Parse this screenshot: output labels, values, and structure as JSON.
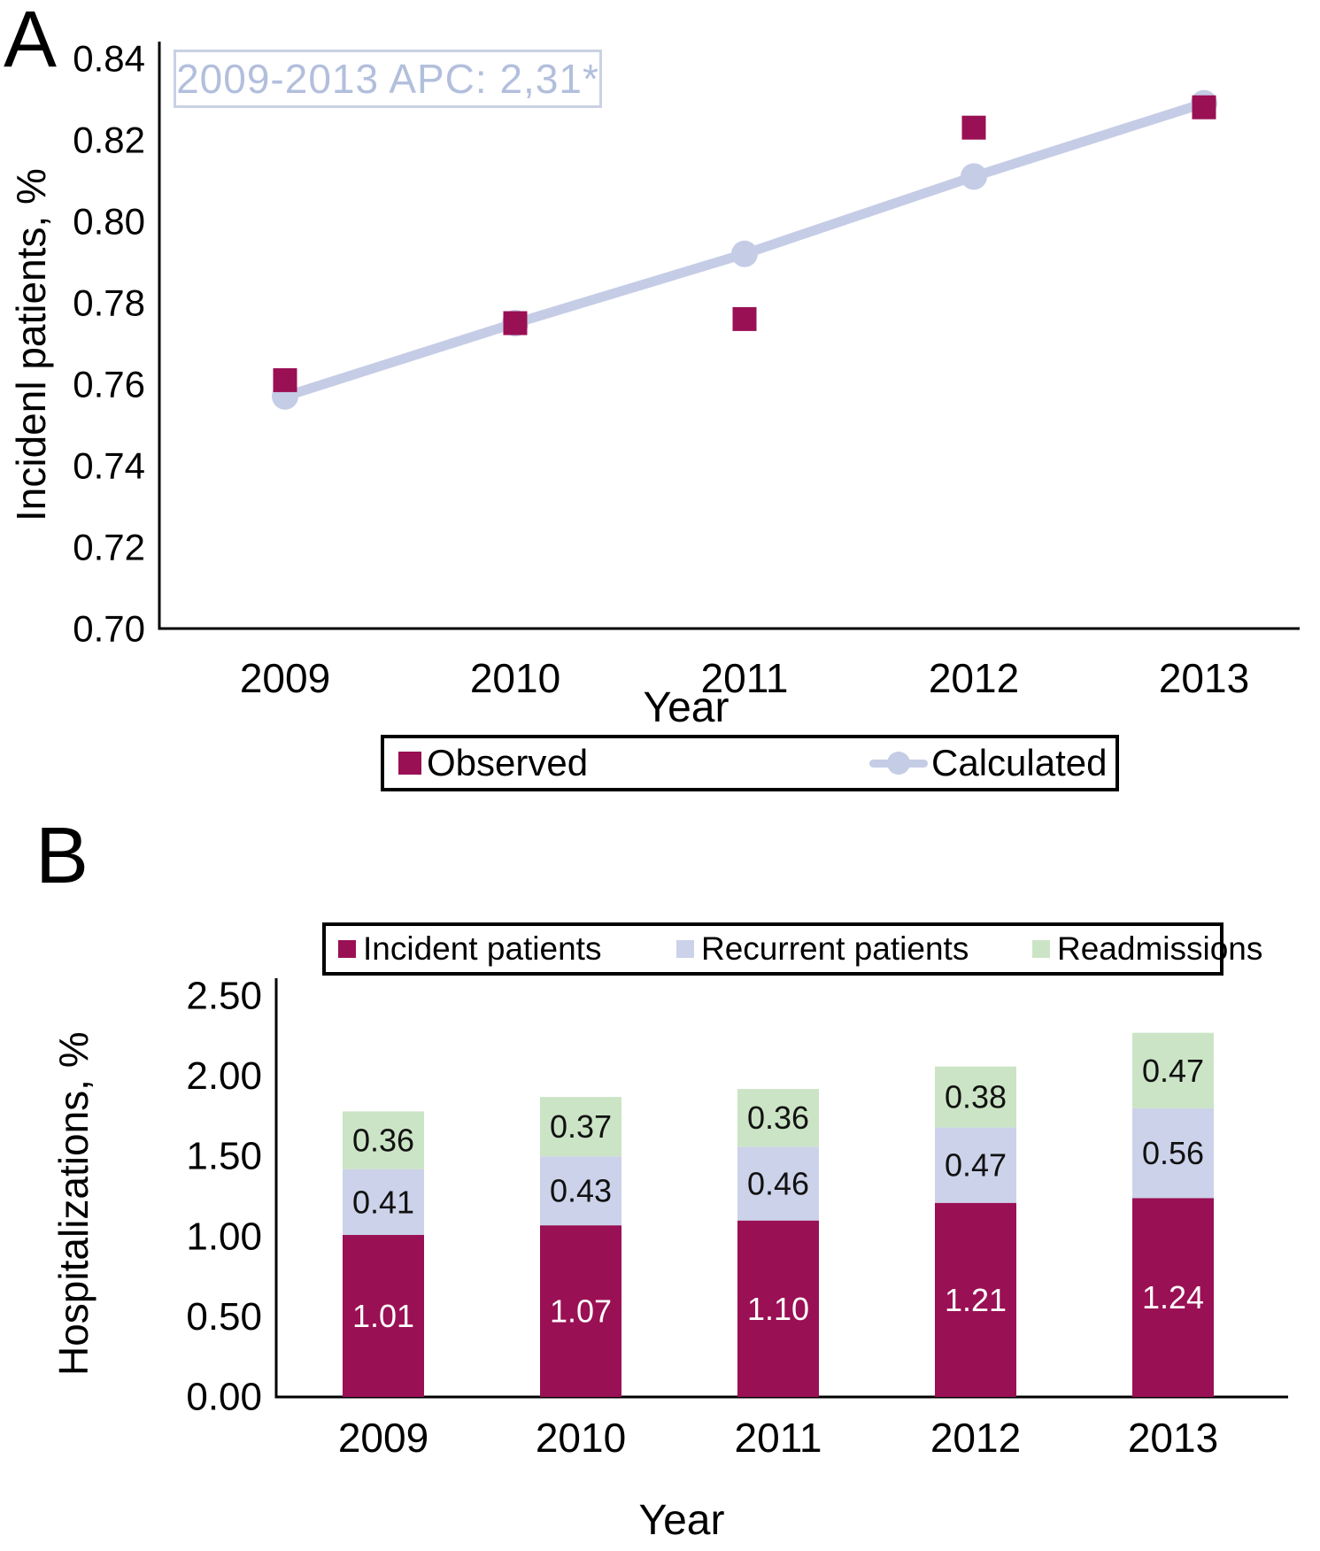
{
  "panel_a": {
    "label": "A"
  },
  "panel_b": {
    "label": "B"
  },
  "chart_data": [
    {
      "type": "line",
      "title": "",
      "annotation": "2009-2013 APC: 2,31*",
      "x": [
        2009,
        2010,
        2011,
        2012,
        2013
      ],
      "series": [
        {
          "name": "Observed",
          "type": "scatter",
          "marker": "square",
          "color": "#9a1054",
          "values": [
            0.761,
            0.775,
            0.776,
            0.823,
            0.828
          ]
        },
        {
          "name": "Calculated",
          "type": "line",
          "marker": "circle",
          "color": "#c5cce6",
          "values": [
            0.757,
            0.775,
            0.792,
            0.811,
            0.829
          ]
        }
      ],
      "ylabel": "Incidenl patients, %",
      "xlabel": "Year",
      "ylim": [
        0.7,
        0.84
      ],
      "ytick_step": 0.02,
      "grid": false,
      "legend_position": "bottom"
    },
    {
      "type": "bar",
      "subtype": "stacked",
      "title": "",
      "categories": [
        "2009",
        "2010",
        "2011",
        "2012",
        "2013"
      ],
      "series": [
        {
          "name": "Incident patients",
          "color": "#9a1054",
          "label_color": "#ffffff",
          "values": [
            1.01,
            1.07,
            1.1,
            1.21,
            1.24
          ]
        },
        {
          "name": "Recurrent patients",
          "color": "#cbd2e9",
          "label_color": "#111111",
          "values": [
            0.41,
            0.43,
            0.46,
            0.47,
            0.56
          ]
        },
        {
          "name": "Readmissions",
          "color": "#cbe4c5",
          "label_color": "#111111",
          "values": [
            0.36,
            0.37,
            0.36,
            0.38,
            0.47
          ]
        }
      ],
      "ylabel": "Hospitalizations, %",
      "xlabel": "Year",
      "ylim": [
        0.0,
        2.5
      ],
      "ytick_step": 0.5,
      "grid": false,
      "legend_position": "top"
    }
  ]
}
